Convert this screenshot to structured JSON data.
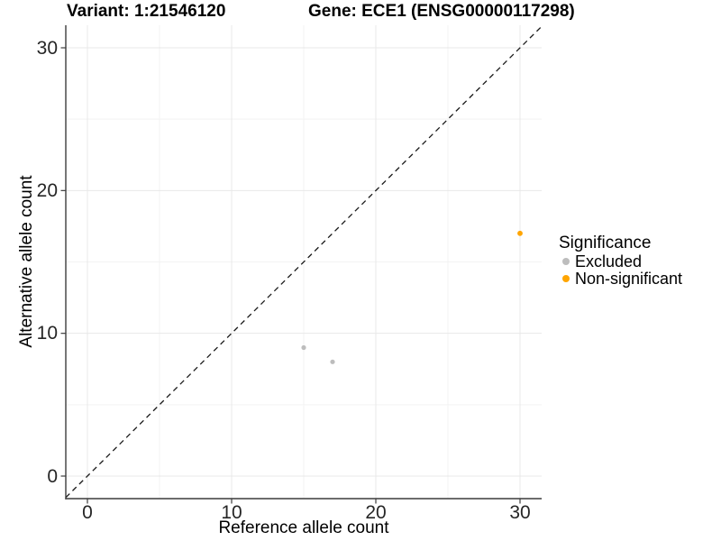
{
  "titles": {
    "left": "Variant: 1:21546120",
    "right": "Gene: ECE1 (ENSG00000117298)"
  },
  "axes": {
    "x_label": "Reference allele count",
    "y_label": "Alternative allele count"
  },
  "legend": {
    "title": "Significance",
    "items": [
      {
        "label": "Excluded",
        "color": "#BDBDBD"
      },
      {
        "label": "Non-significant",
        "color": "#FFA500"
      }
    ]
  },
  "colors": {
    "excluded": "#BDBDBD",
    "non_significant": "#FFA500",
    "axis_line": "#3C3C3C",
    "tick_text": "#262626",
    "grid_major": "#E8E8E8",
    "grid_minor": "#F3F3F3",
    "reference_line": "#1A1A1A"
  },
  "chart_data": {
    "type": "scatter",
    "title": "Variant: 1:21546120 | Gene: ECE1 (ENSG00000117298)",
    "xlabel": "Reference allele count",
    "ylabel": "Alternative allele count",
    "xlim": [
      -1.5,
      31.5
    ],
    "ylim": [
      -1.58,
      31.58
    ],
    "x_ticks": [
      0,
      10,
      20,
      30
    ],
    "y_ticks": [
      0,
      10,
      20,
      30
    ],
    "x_minor_gridlines": [
      5,
      15,
      25
    ],
    "y_minor_gridlines": [
      5,
      15,
      25
    ],
    "grid": true,
    "legend_position": "right",
    "reference_line": {
      "type": "identity y=x",
      "style": "dashed",
      "color": "#1A1A1A"
    },
    "series": [
      {
        "name": "Excluded",
        "color": "#BDBDBD",
        "marker_radius": 2.6,
        "points": [
          {
            "x": 15,
            "y": 9
          },
          {
            "x": 17,
            "y": 8
          }
        ]
      },
      {
        "name": "Non-significant",
        "color": "#FFA500",
        "marker_radius": 2.9,
        "points": [
          {
            "x": 30,
            "y": 17
          }
        ]
      }
    ]
  }
}
